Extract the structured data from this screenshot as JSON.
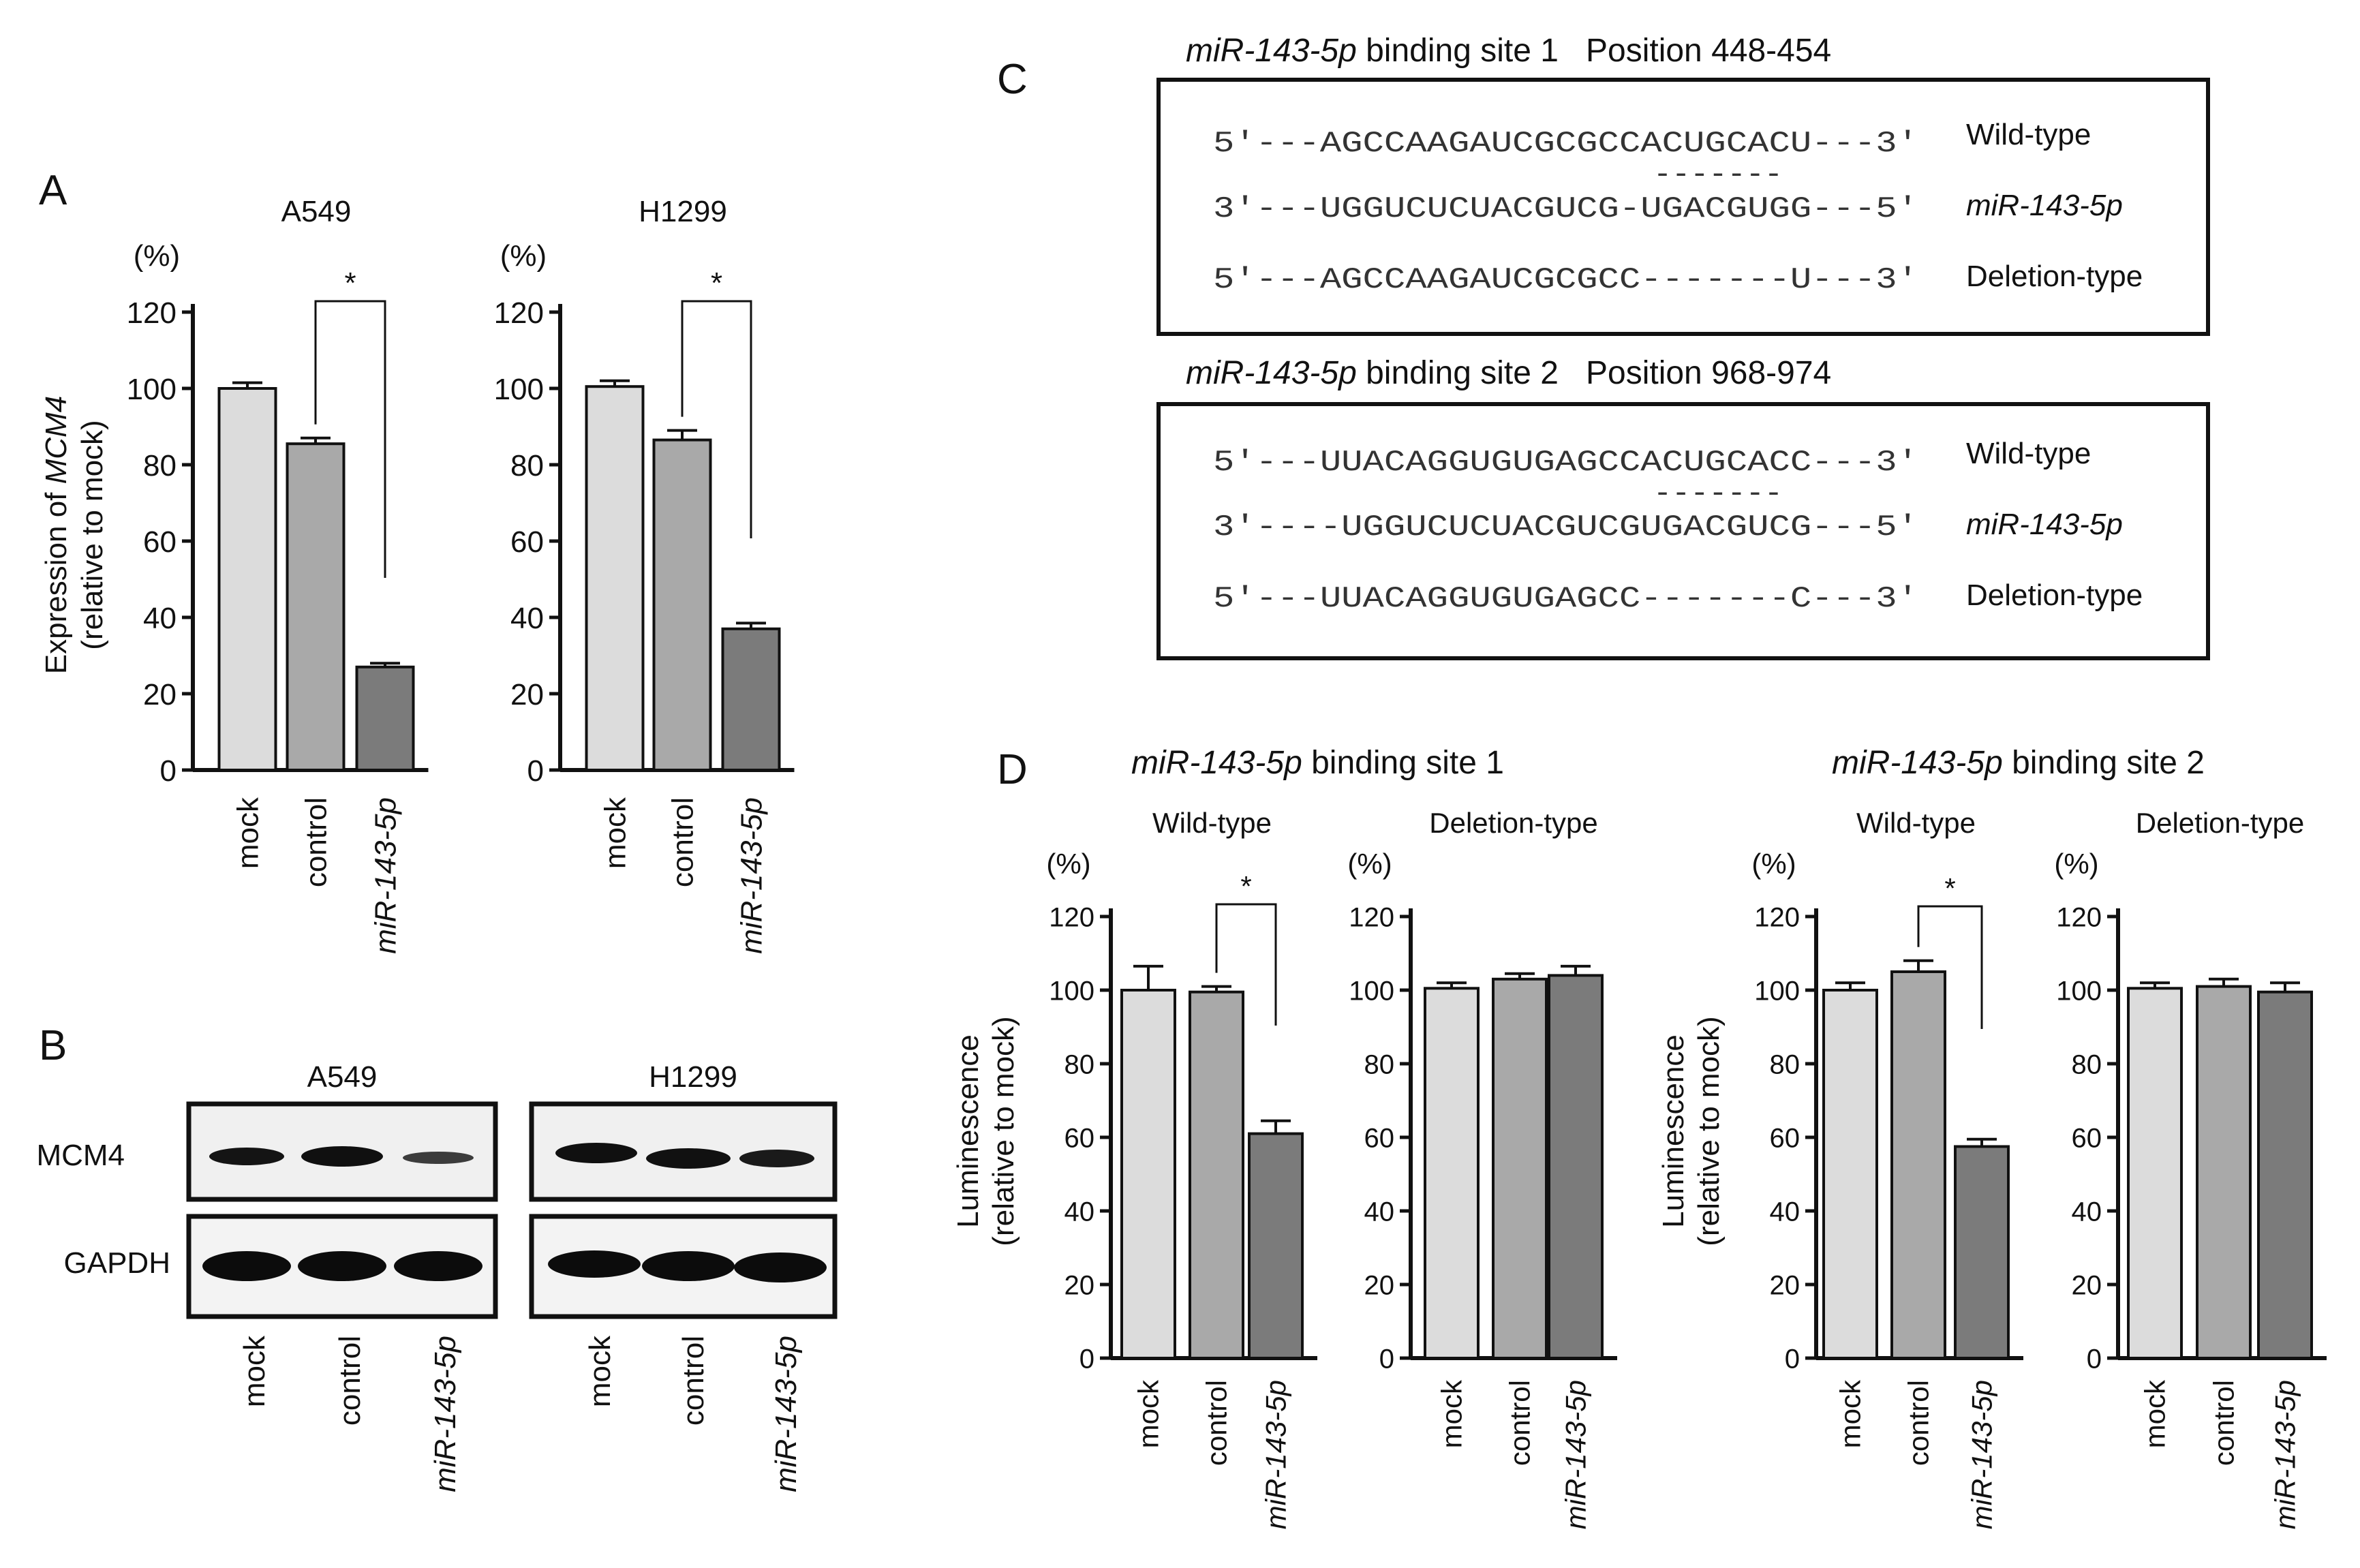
{
  "colors": {
    "mock": "#dcdcdc",
    "control": "#a9a9a9",
    "mir": "#7b7b7b"
  },
  "panel_labels": [
    "A",
    "B",
    "C",
    "D"
  ],
  "common": {
    "pct_unit": "(%)",
    "sig_mark": "*",
    "categories": [
      "mock",
      "control",
      "miR-143-5p"
    ]
  },
  "panelA": {
    "ylabel_expr_prefix": "Expression of ",
    "ylabel_expr_gene": "MCM4",
    "ylabel_rel": "(relative to mock)"
  },
  "chart_data": [
    {
      "id": "A-A549",
      "type": "bar",
      "title": "A549",
      "categories": [
        "mock",
        "control",
        "miR-143-5p"
      ],
      "values": [
        100,
        85.5,
        27
      ],
      "errors": [
        1.5,
        1.5,
        1
      ],
      "ylim": [
        0,
        120
      ],
      "yticks": [
        0,
        20,
        40,
        60,
        80,
        100,
        120
      ],
      "ylabel": "Expression of MCM4 (relative to mock)",
      "significance": "*"
    },
    {
      "id": "A-H1299",
      "type": "bar",
      "title": "H1299",
      "categories": [
        "mock",
        "control",
        "miR-143-5p"
      ],
      "values": [
        100.5,
        86.5,
        37
      ],
      "errors": [
        1.5,
        2.5,
        1.5
      ],
      "ylim": [
        0,
        120
      ],
      "yticks": [
        0,
        20,
        40,
        60,
        80,
        100,
        120
      ],
      "ylabel": "",
      "significance": "*"
    },
    {
      "id": "D-site1-wild",
      "type": "bar",
      "title": "Wild-type",
      "group": "miR-143-5p binding site 1",
      "categories": [
        "mock",
        "control",
        "miR-143-5p"
      ],
      "values": [
        100,
        99.5,
        61
      ],
      "errors": [
        6.5,
        1.5,
        3.5
      ],
      "ylim": [
        0,
        120
      ],
      "yticks": [
        0,
        20,
        40,
        60,
        80,
        100,
        120
      ],
      "ylabel": "Luminescence (relative to mock)",
      "significance": "*"
    },
    {
      "id": "D-site1-del",
      "type": "bar",
      "title": "Deletion-type",
      "group": "miR-143-5p binding site 1",
      "categories": [
        "mock",
        "control",
        "miR-143-5p"
      ],
      "values": [
        100.5,
        103,
        104
      ],
      "errors": [
        1.5,
        1.5,
        2.5
      ],
      "ylim": [
        0,
        120
      ],
      "yticks": [
        0,
        20,
        40,
        60,
        80,
        100,
        120
      ],
      "ylabel": "",
      "significance": null
    },
    {
      "id": "D-site2-wild",
      "type": "bar",
      "title": "Wild-type",
      "group": "miR-143-5p binding site 2",
      "categories": [
        "mock",
        "control",
        "miR-143-5p"
      ],
      "values": [
        100,
        105,
        57.5
      ],
      "errors": [
        2,
        3,
        2
      ],
      "ylim": [
        0,
        120
      ],
      "yticks": [
        0,
        20,
        40,
        60,
        80,
        100,
        120
      ],
      "ylabel": "Luminescence (relative to mock)",
      "significance": "*"
    },
    {
      "id": "D-site2-del",
      "type": "bar",
      "title": "Deletion-type",
      "group": "miR-143-5p binding site 2",
      "categories": [
        "mock",
        "control",
        "miR-143-5p"
      ],
      "values": [
        100.5,
        101,
        99.5
      ],
      "errors": [
        1.5,
        2,
        2.5
      ],
      "ylim": [
        0,
        120
      ],
      "yticks": [
        0,
        20,
        40,
        60,
        80,
        100,
        120
      ],
      "ylabel": "",
      "significance": null
    }
  ],
  "panelB": {
    "cell_lines": [
      "A549",
      "H1299"
    ],
    "row_labels": [
      "MCM4",
      "GAPDH"
    ],
    "categories": [
      "mock",
      "control",
      "miR-143-5p"
    ],
    "band_intensity": {
      "A549": {
        "MCM4": [
          0.9,
          1.0,
          0.45
        ],
        "GAPDH": [
          1.0,
          1.0,
          1.0
        ]
      },
      "H1299": {
        "MCM4": [
          1.0,
          1.0,
          0.85
        ],
        "GAPDH": [
          1.0,
          1.0,
          1.0
        ]
      }
    }
  },
  "panelC": {
    "sites": [
      {
        "title_prefix": "miR-143-5p",
        "title_rest": " binding site 1   Position 448-454",
        "lines": [
          {
            "seq": "5′---AGCCAAGAUCGCGCCACUGCACU---3′",
            "label": "Wild-type"
          },
          {
            "seq": "3′---UGGUCUCUACGUCG-UGACGUGG---5′",
            "label": "miR-143-5p"
          },
          {
            "seq": "5′---AGCCAAGAUCGCGCC-------U---3′",
            "label": "Deletion-type"
          }
        ],
        "match": "-------"
      },
      {
        "title_prefix": "miR-143-5p",
        "title_rest": " binding site 2   Position 968-974",
        "lines": [
          {
            "seq": "5′---UUACAGGUGUGAGCCACUGCACC---3′",
            "label": "Wild-type"
          },
          {
            "seq": "3′----UGGUCUCUACGUCGUGACGUCG---5′",
            "label": "miR-143-5p"
          },
          {
            "seq": "5′---UUACAGGUGUGAGCC-------C---3′",
            "label": "Deletion-type"
          }
        ],
        "match": "-------"
      }
    ]
  },
  "panelD": {
    "groups": [
      {
        "prefix": "miR-143-5p",
        "rest": " binding site 1"
      },
      {
        "prefix": "miR-143-5p",
        "rest": " binding site 2"
      }
    ],
    "ylabel_top": "Luminescence",
    "ylabel_rel": "(relative to mock)"
  }
}
